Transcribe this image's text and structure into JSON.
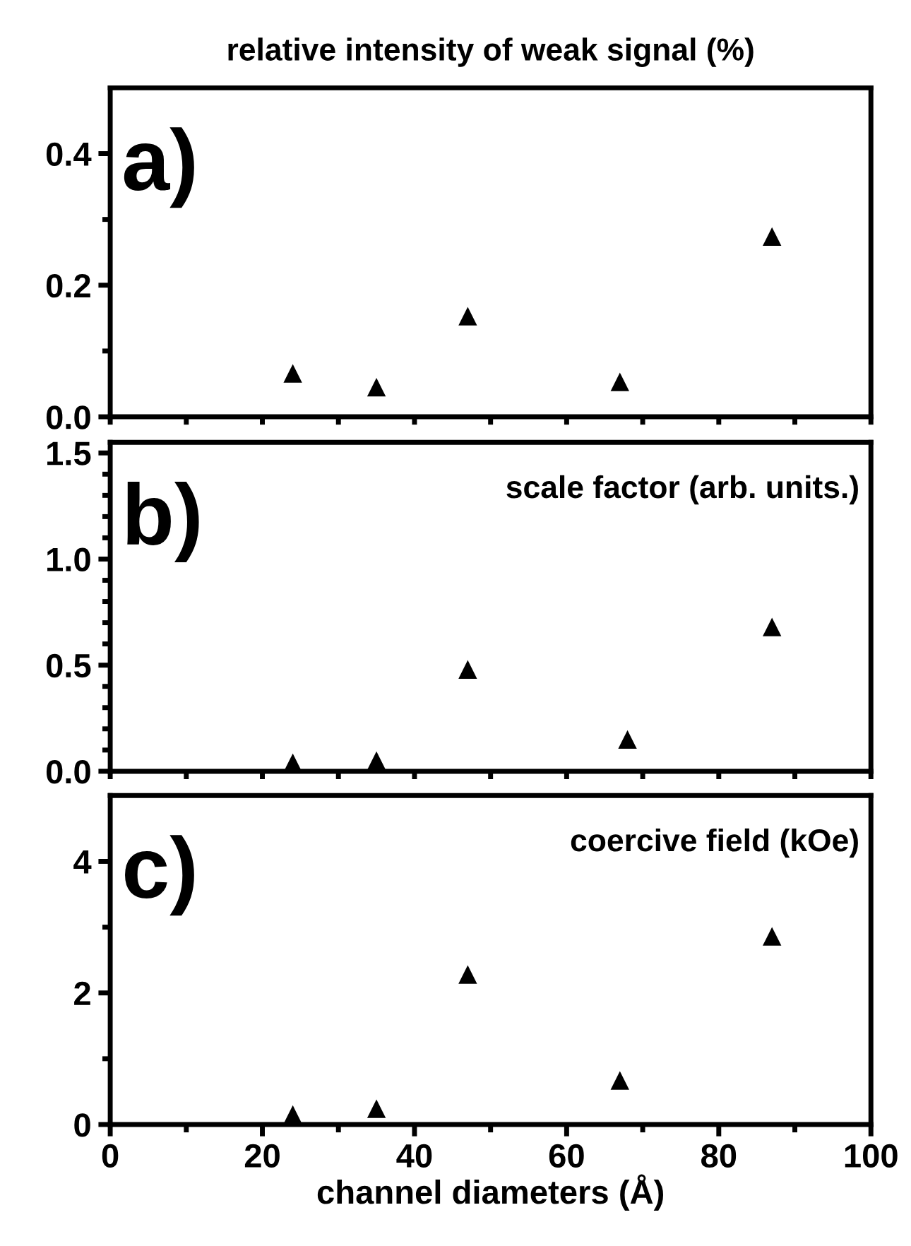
{
  "chart_data": [
    {
      "type": "scatter",
      "title": "relative intensity of weak signal (%)",
      "annotations": [
        "a)"
      ],
      "x": [
        24,
        35,
        47,
        67,
        87
      ],
      "values": [
        0.066,
        0.045,
        0.153,
        0.053,
        0.274
      ],
      "color": "#000000",
      "marker": "triangle",
      "xlim": [
        0,
        100
      ],
      "xticks": [
        {
          "value": 0,
          "label": null
        },
        {
          "value": 10,
          "label": null
        },
        {
          "value": 20,
          "label": null
        },
        {
          "value": 30,
          "label": null
        },
        {
          "value": 40,
          "label": null
        },
        {
          "value": 50,
          "label": null
        },
        {
          "value": 60,
          "label": null
        },
        {
          "value": 70,
          "label": null
        },
        {
          "value": 80,
          "label": null
        },
        {
          "value": 90,
          "label": null
        },
        {
          "value": 100,
          "label": null
        }
      ],
      "ylim": [
        0,
        0.5
      ],
      "yticks": [
        {
          "value": 0,
          "label": "0.0"
        },
        {
          "value": 0.1,
          "label": null
        },
        0.2,
        {
          "value": 0.3,
          "label": null
        },
        0.4
      ],
      "tick_labels": "y",
      "grid": false,
      "legend": false
    },
    {
      "type": "scatter",
      "annotations": [
        "b)",
        "scale factor (arb. units.)"
      ],
      "x": [
        24,
        35,
        47,
        68,
        87
      ],
      "values": [
        0.04,
        0.05,
        0.48,
        0.15,
        0.68
      ],
      "color": "#000000",
      "marker": "triangle",
      "xlim": [
        0,
        100
      ],
      "xticks": [
        {
          "value": 0,
          "label": null
        },
        {
          "value": 10,
          "label": null
        },
        {
          "value": 20,
          "label": null
        },
        {
          "value": 30,
          "label": null
        },
        {
          "value": 40,
          "label": null
        },
        {
          "value": 50,
          "label": null
        },
        {
          "value": 60,
          "label": null
        },
        {
          "value": 70,
          "label": null
        },
        {
          "value": 80,
          "label": null
        },
        {
          "value": 90,
          "label": null
        },
        {
          "value": 100,
          "label": null
        }
      ],
      "ylim": [
        0,
        1.55
      ],
      "yticks": [
        {
          "value": 0,
          "label": "0.0"
        },
        {
          "value": 0.1,
          "label": null
        },
        {
          "value": 0.2,
          "label": null
        },
        {
          "value": 0.3,
          "label": null
        },
        {
          "value": 0.4,
          "label": null
        },
        0.5,
        {
          "value": 0.6,
          "label": null
        },
        {
          "value": 0.7,
          "label": null
        },
        {
          "value": 0.8,
          "label": null
        },
        {
          "value": 0.9,
          "label": null
        },
        {
          "value": 1,
          "label": "1.0"
        },
        {
          "value": 1.1,
          "label": null
        },
        {
          "value": 1.2,
          "label": null
        },
        {
          "value": 1.3,
          "label": null
        },
        {
          "value": 1.4,
          "label": null
        },
        1.5
      ],
      "tick_labels": "y",
      "grid": false,
      "legend": false
    },
    {
      "type": "scatter",
      "annotations": [
        "c)",
        "coercive field (kOe)"
      ],
      "xlabel": "channel diameters (Å)",
      "x": [
        24,
        35,
        47,
        67,
        87
      ],
      "values": [
        0.15,
        0.24,
        2.28,
        0.67,
        2.86
      ],
      "color": "#000000",
      "marker": "triangle",
      "xlim": [
        0,
        100
      ],
      "xticks": [
        0,
        {
          "value": 10,
          "label": null
        },
        20,
        {
          "value": 30,
          "label": null
        },
        40,
        {
          "value": 50,
          "label": null
        },
        60,
        {
          "value": 70,
          "label": null
        },
        80,
        {
          "value": 90,
          "label": null
        },
        100
      ],
      "ylim": [
        0,
        5
      ],
      "yticks": [
        0,
        {
          "value": 1,
          "label": null
        },
        2,
        {
          "value": 3,
          "label": null
        },
        4
      ],
      "grid": false,
      "legend": false
    }
  ]
}
